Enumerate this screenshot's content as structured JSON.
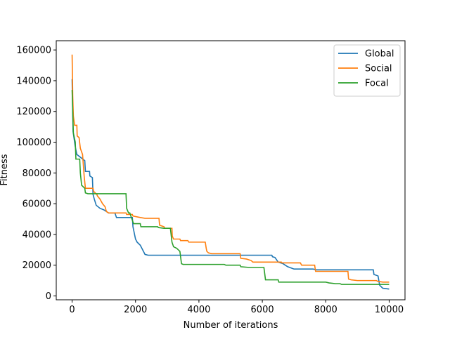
{
  "chart_data": {
    "type": "line",
    "xlabel": "Number of iterations",
    "ylabel": "Fitness",
    "xlim": [
      -500,
      10500
    ],
    "ylim": [
      -2500,
      166000
    ],
    "xticks": [
      0,
      2000,
      4000,
      6000,
      8000,
      10000
    ],
    "yticks": [
      0,
      20000,
      40000,
      60000,
      80000,
      100000,
      120000,
      140000,
      160000
    ],
    "grid": false,
    "legend": "top-right",
    "series": [
      {
        "name": "Global",
        "color": "#1f77b4",
        "points": [
          [
            0,
            141000
          ],
          [
            30,
            107000
          ],
          [
            100,
            97000
          ],
          [
            150,
            92000
          ],
          [
            400,
            88000
          ],
          [
            420,
            81000
          ],
          [
            550,
            81000
          ],
          [
            560,
            78000
          ],
          [
            640,
            77000
          ],
          [
            660,
            66000
          ],
          [
            700,
            63000
          ],
          [
            760,
            59000
          ],
          [
            880,
            57000
          ],
          [
            1000,
            56000
          ],
          [
            1150,
            54000
          ],
          [
            1350,
            54000
          ],
          [
            1400,
            51000
          ],
          [
            1900,
            51000
          ],
          [
            1920,
            45000
          ],
          [
            1960,
            41000
          ],
          [
            2000,
            37000
          ],
          [
            2050,
            35000
          ],
          [
            2150,
            33000
          ],
          [
            2200,
            31000
          ],
          [
            2250,
            29000
          ],
          [
            2300,
            27000
          ],
          [
            2400,
            26500
          ],
          [
            5300,
            26500
          ],
          [
            6300,
            26500
          ],
          [
            6320,
            25500
          ],
          [
            6400,
            25000
          ],
          [
            6500,
            22000
          ],
          [
            6650,
            21000
          ],
          [
            6800,
            19000
          ],
          [
            7000,
            17500
          ],
          [
            7600,
            17500
          ],
          [
            7700,
            17000
          ],
          [
            9500,
            17000
          ],
          [
            9520,
            14000
          ],
          [
            9650,
            13000
          ],
          [
            9700,
            7000
          ],
          [
            9800,
            5000
          ],
          [
            10000,
            4500
          ]
        ]
      },
      {
        "name": "Social",
        "color": "#ff7f0e",
        "points": [
          [
            0,
            157000
          ],
          [
            20,
            130000
          ],
          [
            40,
            117000
          ],
          [
            80,
            111000
          ],
          [
            150,
            111000
          ],
          [
            160,
            104000
          ],
          [
            220,
            103000
          ],
          [
            260,
            96000
          ],
          [
            330,
            92000
          ],
          [
            380,
            78000
          ],
          [
            420,
            70000
          ],
          [
            660,
            70000
          ],
          [
            680,
            68000
          ],
          [
            780,
            66000
          ],
          [
            800,
            65000
          ],
          [
            880,
            63000
          ],
          [
            960,
            60000
          ],
          [
            1040,
            58000
          ],
          [
            1080,
            55000
          ],
          [
            1150,
            54000
          ],
          [
            1700,
            54000
          ],
          [
            1720,
            53000
          ],
          [
            1900,
            53000
          ],
          [
            1920,
            52000
          ],
          [
            2150,
            51000
          ],
          [
            2300,
            50500
          ],
          [
            2740,
            50500
          ],
          [
            2760,
            46000
          ],
          [
            2900,
            45000
          ],
          [
            2920,
            44000
          ],
          [
            3150,
            44000
          ],
          [
            3160,
            39000
          ],
          [
            3200,
            37000
          ],
          [
            3400,
            37000
          ],
          [
            3420,
            36000
          ],
          [
            3650,
            36000
          ],
          [
            3680,
            35000
          ],
          [
            4200,
            35000
          ],
          [
            4230,
            31000
          ],
          [
            4250,
            29000
          ],
          [
            4300,
            28000
          ],
          [
            4400,
            27500
          ],
          [
            5300,
            27500
          ],
          [
            5320,
            24500
          ],
          [
            5500,
            24000
          ],
          [
            5650,
            23000
          ],
          [
            5700,
            22000
          ],
          [
            6600,
            22000
          ],
          [
            6620,
            21500
          ],
          [
            7200,
            21500
          ],
          [
            7240,
            20000
          ],
          [
            7650,
            20000
          ],
          [
            7680,
            16000
          ],
          [
            8700,
            16000
          ],
          [
            8720,
            11000
          ],
          [
            8800,
            10500
          ],
          [
            9000,
            10000
          ],
          [
            9600,
            10000
          ],
          [
            9640,
            9500
          ],
          [
            9800,
            9000
          ],
          [
            10000,
            9000
          ]
        ]
      },
      {
        "name": "Focal",
        "color": "#2ca02c",
        "points": [
          [
            0,
            134000
          ],
          [
            40,
            106000
          ],
          [
            100,
            100000
          ],
          [
            120,
            89000
          ],
          [
            240,
            89000
          ],
          [
            260,
            80000
          ],
          [
            300,
            72000
          ],
          [
            400,
            70000
          ],
          [
            420,
            67000
          ],
          [
            500,
            66500
          ],
          [
            1700,
            66500
          ],
          [
            1720,
            57000
          ],
          [
            1780,
            54000
          ],
          [
            1820,
            54000
          ],
          [
            1870,
            51000
          ],
          [
            1940,
            47000
          ],
          [
            2150,
            47000
          ],
          [
            2170,
            45000
          ],
          [
            2700,
            45000
          ],
          [
            2720,
            44500
          ],
          [
            2900,
            44000
          ],
          [
            3100,
            44000
          ],
          [
            3150,
            35000
          ],
          [
            3200,
            32000
          ],
          [
            3300,
            31000
          ],
          [
            3400,
            29000
          ],
          [
            3450,
            21000
          ],
          [
            3500,
            20500
          ],
          [
            4800,
            20500
          ],
          [
            4850,
            20000
          ],
          [
            5300,
            20000
          ],
          [
            5320,
            19000
          ],
          [
            5600,
            18500
          ],
          [
            6050,
            18500
          ],
          [
            6100,
            10500
          ],
          [
            6500,
            10500
          ],
          [
            6520,
            9000
          ],
          [
            7950,
            9000
          ],
          [
            8000,
            9000
          ],
          [
            8100,
            8500
          ],
          [
            8300,
            8000
          ],
          [
            8450,
            8000
          ],
          [
            8500,
            7500
          ],
          [
            9000,
            7500
          ],
          [
            10000,
            7500
          ]
        ]
      }
    ]
  }
}
